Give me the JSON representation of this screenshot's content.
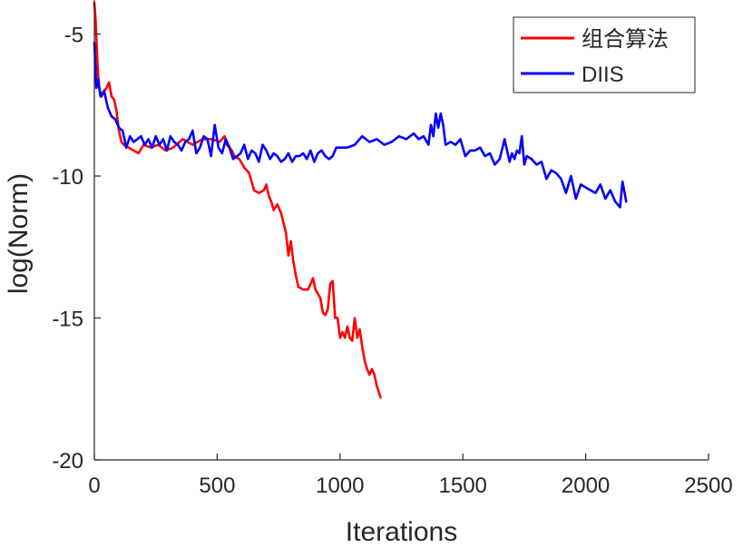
{
  "chart_data": {
    "type": "line",
    "title": "",
    "xlabel": "Iterations",
    "ylabel": "log(Norm)",
    "xlim": [
      0,
      2500
    ],
    "ylim": [
      -20,
      -3.8
    ],
    "xticks": [
      0,
      500,
      1000,
      1500,
      2000,
      2500
    ],
    "xtick_labels": [
      "0",
      "500",
      "1000",
      "1500",
      "2000",
      "2500"
    ],
    "yticks": [
      -20,
      -15,
      -10,
      -5
    ],
    "ytick_labels": [
      "-20",
      "-15",
      "-10",
      "-5"
    ],
    "grid": false,
    "legend_position": "top-right",
    "series": [
      {
        "name": "组合算法",
        "color": "#ff0000",
        "x": [
          0,
          5,
          10,
          15,
          20,
          30,
          40,
          50,
          60,
          70,
          80,
          90,
          100,
          110,
          120,
          140,
          160,
          180,
          200,
          230,
          260,
          290,
          320,
          360,
          400,
          440,
          480,
          510,
          530,
          540,
          550,
          560,
          570,
          590,
          610,
          630,
          650,
          670,
          690,
          700,
          710,
          720,
          730,
          745,
          760,
          780,
          790,
          800,
          810,
          820,
          830,
          850,
          870,
          890,
          900,
          920,
          930,
          940,
          950,
          960,
          970,
          980,
          990,
          1000,
          1010,
          1020,
          1030,
          1040,
          1050,
          1060,
          1070,
          1080,
          1090,
          1100,
          1110,
          1120,
          1130,
          1140,
          1150,
          1165
        ],
        "y": [
          -3.9,
          -4.5,
          -5.5,
          -6.4,
          -6.9,
          -7.2,
          -7.0,
          -6.9,
          -6.7,
          -7.2,
          -7.3,
          -7.7,
          -8.4,
          -8.8,
          -8.9,
          -9.0,
          -9.1,
          -9.2,
          -8.9,
          -9.0,
          -8.9,
          -9.1,
          -9.0,
          -8.7,
          -8.9,
          -8.7,
          -8.7,
          -8.8,
          -8.6,
          -8.9,
          -9.0,
          -9.1,
          -9.3,
          -9.4,
          -9.7,
          -9.9,
          -10.5,
          -10.6,
          -10.5,
          -10.3,
          -10.7,
          -10.9,
          -11.2,
          -11.0,
          -11.3,
          -12.0,
          -12.8,
          -12.3,
          -13.0,
          -13.5,
          -13.9,
          -14.0,
          -14.0,
          -13.6,
          -14.0,
          -14.3,
          -14.8,
          -14.9,
          -14.7,
          -13.8,
          -13.7,
          -15.0,
          -15.0,
          -15.7,
          -15.5,
          -15.7,
          -15.3,
          -15.7,
          -15.8,
          -15.0,
          -15.7,
          -15.4,
          -16.0,
          -16.5,
          -16.8,
          -17.0,
          -16.8,
          -17.0,
          -17.4,
          -17.8
        ]
      },
      {
        "name": "DIIS",
        "color": "#0000ff",
        "x": [
          0,
          8,
          15,
          25,
          40,
          55,
          70,
          85,
          100,
          115,
          130,
          145,
          160,
          175,
          190,
          205,
          220,
          235,
          250,
          265,
          280,
          295,
          310,
          325,
          340,
          355,
          370,
          385,
          400,
          415,
          430,
          445,
          460,
          475,
          490,
          505,
          520,
          535,
          550,
          565,
          580,
          595,
          610,
          625,
          640,
          655,
          670,
          685,
          700,
          715,
          730,
          745,
          760,
          775,
          790,
          805,
          820,
          835,
          850,
          865,
          880,
          895,
          910,
          925,
          940,
          955,
          970,
          985,
          1000,
          1030,
          1060,
          1090,
          1120,
          1150,
          1180,
          1210,
          1240,
          1270,
          1300,
          1320,
          1340,
          1360,
          1370,
          1380,
          1390,
          1400,
          1410,
          1420,
          1430,
          1450,
          1470,
          1490,
          1510,
          1530,
          1550,
          1570,
          1590,
          1610,
          1630,
          1650,
          1670,
          1690,
          1700,
          1710,
          1720,
          1730,
          1740,
          1750,
          1760,
          1780,
          1800,
          1820,
          1840,
          1860,
          1880,
          1900,
          1920,
          1940,
          1960,
          1980,
          2000,
          2020,
          2040,
          2060,
          2080,
          2100,
          2120,
          2140,
          2150,
          2165
        ],
        "y": [
          -5.3,
          -6.9,
          -6.6,
          -7.2,
          -7.0,
          -7.6,
          -7.9,
          -8.0,
          -8.3,
          -8.4,
          -9.0,
          -8.6,
          -8.8,
          -8.7,
          -8.6,
          -8.9,
          -8.7,
          -9.0,
          -8.6,
          -8.9,
          -8.7,
          -9.1,
          -8.6,
          -8.8,
          -8.9,
          -9.1,
          -8.8,
          -8.7,
          -8.4,
          -9.2,
          -9.0,
          -8.6,
          -8.7,
          -9.3,
          -8.2,
          -9.0,
          -9.2,
          -8.7,
          -9.0,
          -9.4,
          -9.3,
          -9.2,
          -8.9,
          -9.4,
          -9.1,
          -9.2,
          -9.5,
          -8.9,
          -9.1,
          -9.4,
          -9.2,
          -9.3,
          -9.5,
          -9.4,
          -9.2,
          -9.5,
          -9.3,
          -9.3,
          -9.2,
          -9.4,
          -9.1,
          -9.5,
          -9.2,
          -9.1,
          -9.3,
          -9.4,
          -9.3,
          -9.0,
          -9.0,
          -9.0,
          -8.9,
          -8.6,
          -8.8,
          -8.7,
          -8.9,
          -8.8,
          -8.6,
          -8.7,
          -8.5,
          -8.7,
          -8.6,
          -8.9,
          -8.2,
          -8.6,
          -7.8,
          -8.3,
          -7.8,
          -8.2,
          -8.9,
          -8.8,
          -8.9,
          -8.7,
          -9.3,
          -9.1,
          -9.1,
          -9.0,
          -9.3,
          -9.2,
          -9.6,
          -9.4,
          -8.7,
          -9.5,
          -9.2,
          -9.4,
          -9.1,
          -9.2,
          -8.6,
          -9.6,
          -9.3,
          -9.4,
          -9.6,
          -9.5,
          -10.1,
          -9.8,
          -9.9,
          -10.1,
          -10.6,
          -10.0,
          -10.8,
          -10.3,
          -10.4,
          -10.5,
          -10.6,
          -10.3,
          -10.8,
          -10.5,
          -10.9,
          -11.1,
          -10.2,
          -10.9
        ]
      }
    ]
  }
}
